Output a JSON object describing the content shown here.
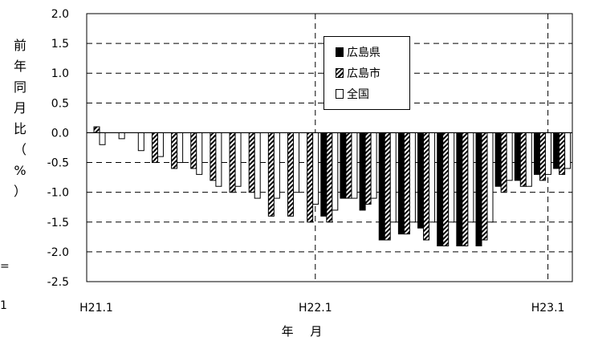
{
  "chart_data": {
    "type": "bar",
    "ylabel": "前年同月比（%）",
    "xlabel": "年 月",
    "ylim": [
      -2.5,
      2.0
    ],
    "yticks": [
      2.0,
      1.5,
      1.0,
      0.5,
      0.0,
      -0.5,
      -1.0,
      -1.5,
      -2.0,
      -2.5
    ],
    "ytick_labels": [
      "2.0",
      "1.5",
      "1.0",
      "0.5",
      "0.0",
      "-0.5",
      "-1.0",
      "-1.5",
      "-2.0",
      "-2.5"
    ],
    "grid": "horizontal dashed",
    "legend_position": "top-center",
    "x_tick_labels": [
      {
        "label": "H21.1",
        "index": 0
      },
      {
        "label": "H22.1",
        "index": 12
      },
      {
        "label": "H23.1",
        "index": 24
      }
    ],
    "categories": [
      "H21.1",
      "H21.2",
      "H21.3",
      "H21.4",
      "H21.5",
      "H21.6",
      "H21.7",
      "H21.8",
      "H21.9",
      "H21.10",
      "H21.11",
      "H21.12",
      "H22.1",
      "H22.2",
      "H22.3",
      "H22.4",
      "H22.5",
      "H22.6",
      "H22.7",
      "H22.8",
      "H22.9",
      "H22.10",
      "H22.11",
      "H22.12",
      "H23.1"
    ],
    "series": [
      {
        "name": "広島県",
        "fill": "solid",
        "values": [
          null,
          null,
          null,
          null,
          null,
          null,
          null,
          null,
          null,
          null,
          null,
          null,
          -1.4,
          -1.1,
          -1.3,
          -1.8,
          -1.7,
          -1.6,
          -1.9,
          -1.9,
          -1.9,
          -0.9,
          -0.8,
          -0.7,
          -0.6
        ]
      },
      {
        "name": "広島市",
        "fill": "hatched",
        "values": [
          0.1,
          null,
          null,
          -0.5,
          -0.6,
          -0.6,
          -0.8,
          -1.0,
          -1.0,
          -1.4,
          -1.4,
          -1.5,
          -1.5,
          -1.1,
          -1.2,
          -1.8,
          -1.7,
          -1.8,
          -1.9,
          -1.9,
          -1.8,
          -1.0,
          -0.9,
          -0.8,
          -0.7
        ]
      },
      {
        "name": "全国",
        "fill": "white",
        "values": [
          -0.2,
          -0.1,
          -0.3,
          -0.4,
          -0.5,
          -0.7,
          -0.9,
          -0.9,
          -1.1,
          -1.1,
          -1.0,
          -1.2,
          -1.3,
          -1.1,
          -1.1,
          -1.5,
          -1.5,
          -1.5,
          -1.5,
          -1.5,
          -1.5,
          -0.8,
          -0.9,
          -0.7,
          -0.6
        ]
      }
    ]
  },
  "edge_marks": {
    "left_top": "=",
    "left_bottom": "1"
  }
}
